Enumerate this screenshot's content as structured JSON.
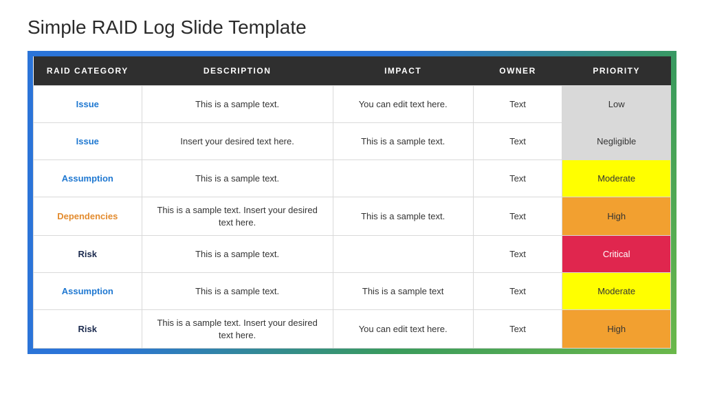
{
  "title": "Simple RAID Log Slide Template",
  "table": {
    "columns": [
      "RAID CATEGORY",
      "DESCRIPTION",
      "IMPACT",
      "OWNER",
      "PRIORITY"
    ],
    "col_widths": [
      "17%",
      "30%",
      "22%",
      "14%",
      "17%"
    ],
    "header_bg": "#2f2f2f",
    "header_color": "#ffffff",
    "border_color": "#d9d9d9",
    "frame_gradient": [
      "#2b74d8",
      "#3a9b5c",
      "#6bb84a"
    ],
    "category_colors": {
      "Issue": "#1f78d1",
      "Assumption": "#1f78d1",
      "Dependencies": "#e38b2e",
      "Risk": "#1b2a4e"
    },
    "priority_styles": {
      "Low": {
        "bg": "#d9d9d9",
        "color": "#333333"
      },
      "Negligible": {
        "bg": "#d9d9d9",
        "color": "#333333"
      },
      "Moderate": {
        "bg": "#ffff00",
        "color": "#333333"
      },
      "High": {
        "bg": "#f2a030",
        "color": "#333333"
      },
      "Critical": {
        "bg": "#e0264e",
        "color": "#ffffff"
      }
    },
    "rows": [
      {
        "category": "Issue",
        "description": "This is a sample text.",
        "impact": "You can edit text here.",
        "owner": "Text",
        "priority": "Low"
      },
      {
        "category": "Issue",
        "description": "Insert your desired text here.",
        "impact": "This is a sample text.",
        "owner": "Text",
        "priority": "Negligible"
      },
      {
        "category": "Assumption",
        "description": "This is a sample text.",
        "impact": "",
        "owner": "Text",
        "priority": "Moderate"
      },
      {
        "category": "Dependencies",
        "description": "This is a sample text. Insert your desired text here.",
        "impact": "This is a sample text.",
        "owner": "Text",
        "priority": "High"
      },
      {
        "category": "Risk",
        "description": "This is a sample text.",
        "impact": "",
        "owner": "Text",
        "priority": "Critical"
      },
      {
        "category": "Assumption",
        "description": "This is a sample text.",
        "impact": "This is a sample text",
        "owner": "Text",
        "priority": "Moderate"
      },
      {
        "category": "Risk",
        "description": "This is a sample text. Insert your desired text here.",
        "impact": "You can edit text here.",
        "owner": "Text",
        "priority": "High"
      }
    ]
  }
}
